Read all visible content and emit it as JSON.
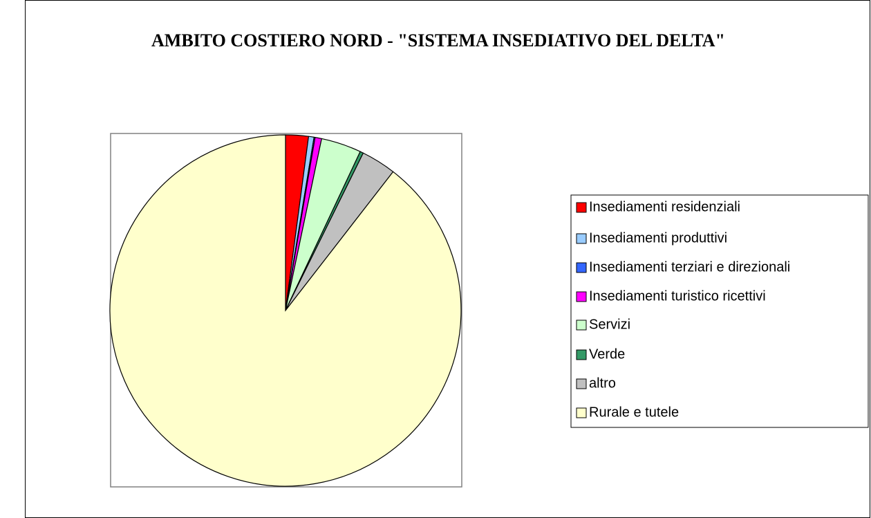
{
  "chart_data": {
    "type": "pie",
    "title": "AMBITO COSTIERO NORD - \"SISTEMA INSEDIATIVO DEL DELTA\"",
    "categories": [
      "Insediamenti residenziali",
      "Insediamenti produttivi",
      "Insediamenti terziari e direzionali",
      "Insediamenti turistico ricettivi",
      "Servizi",
      "Verde",
      "altro",
      "Rurale e tutele"
    ],
    "values": [
      2.1,
      0.5,
      0.1,
      0.6,
      3.7,
      0.3,
      3.2,
      89.5
    ],
    "colors": [
      "#ff0000",
      "#99ccff",
      "#3366ff",
      "#ff00ff",
      "#ccffcc",
      "#339966",
      "#c0c0c0",
      "#ffffcc"
    ],
    "legend": "right"
  }
}
